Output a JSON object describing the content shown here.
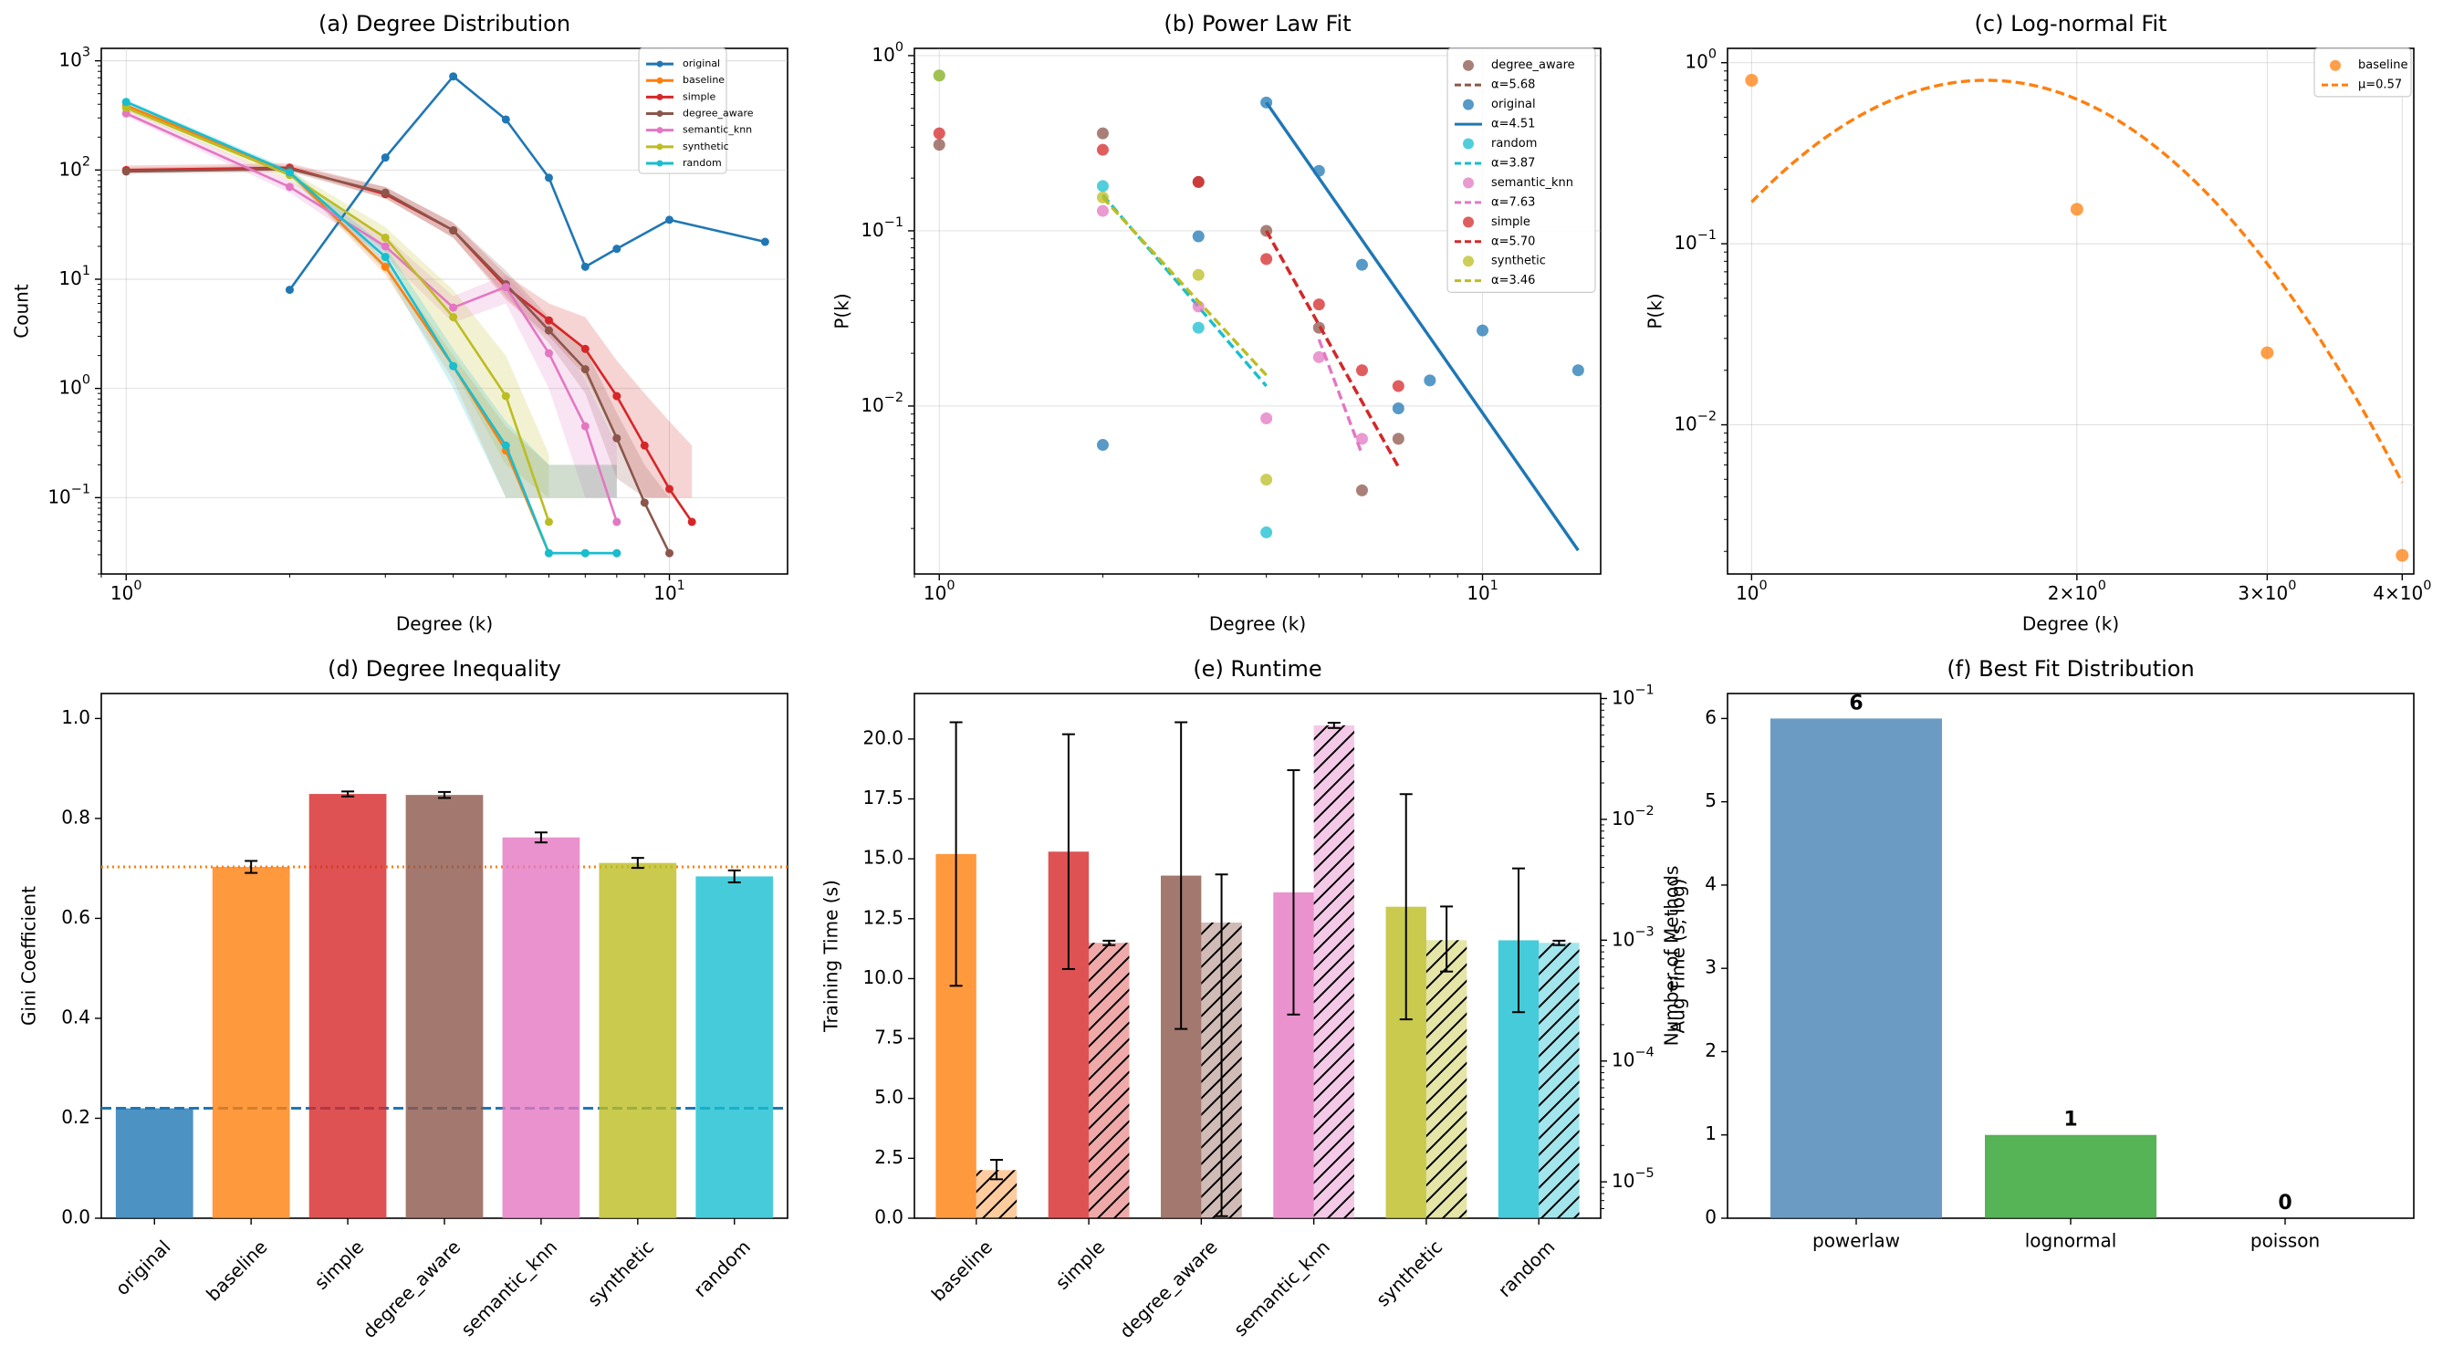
{
  "colors": {
    "original": "#1f77b4",
    "baseline": "#ff7f0e",
    "simple": "#d62728",
    "degree_aware": "#8c564b",
    "semantic_knn": "#e377c2",
    "synthetic": "#bcbd22",
    "random": "#17becf",
    "powerlaw_bar": "#4682b4",
    "lognormal_bar": "#2ca02c"
  },
  "chart_data": [
    {
      "id": "a",
      "type": "line",
      "title": "(a) Degree Distribution",
      "xlabel": "Degree (k)",
      "ylabel": "Count",
      "xscale": "log",
      "yscale": "log",
      "xlim": [
        0.9,
        16.5
      ],
      "ylim": [
        0.02,
        1300
      ],
      "xticks": [
        1,
        10
      ],
      "xtick_labels": [
        "10^0",
        "10^1"
      ],
      "yticks": [
        0.1,
        1,
        10,
        100,
        1000
      ],
      "ytick_labels": [
        "10^-1",
        "10^0",
        "10^1",
        "10^2",
        "10^3"
      ],
      "legend_position": "top-right",
      "series": [
        {
          "name": "original",
          "x": [
            2,
            3,
            4,
            5,
            6,
            7,
            8,
            10,
            15
          ],
          "y": [
            8,
            130,
            720,
            290,
            85,
            13,
            19,
            35,
            22
          ]
        },
        {
          "name": "baseline",
          "x": [
            1,
            2,
            3,
            4,
            5,
            6,
            7,
            8
          ],
          "y": [
            390,
            95,
            13,
            1.6,
            0.27,
            0.031,
            0.031,
            0.031
          ],
          "band_lo": [
            380,
            90,
            11,
            1.2,
            0.1,
            0.1,
            0.1,
            0.1
          ],
          "band_hi": [
            400,
            100,
            15,
            2.0,
            0.45,
            0.2,
            0.2,
            0.2
          ]
        },
        {
          "name": "simple",
          "x": [
            1,
            2,
            3,
            4,
            5,
            6,
            7,
            8,
            9,
            10,
            11
          ],
          "y": [
            100,
            105,
            60,
            28,
            8.5,
            4.2,
            2.3,
            0.85,
            0.3,
            0.12,
            0.06
          ],
          "band_lo": [
            95,
            100,
            55,
            24,
            6.5,
            3.0,
            1.3,
            0.35,
            0.1,
            0.1,
            0.1
          ],
          "band_hi": [
            110,
            115,
            70,
            33,
            11,
            6,
            4.5,
            1.8,
            0.9,
            0.5,
            0.3
          ]
        },
        {
          "name": "degree_aware",
          "x": [
            1,
            2,
            3,
            4,
            5,
            6,
            7,
            8,
            9,
            10
          ],
          "y": [
            97,
            102,
            62,
            28,
            9,
            3.4,
            1.5,
            0.35,
            0.09,
            0.031
          ],
          "band_lo": [
            92,
            96,
            55,
            24,
            7,
            2.6,
            0.9,
            0.15,
            0.1,
            0.1
          ],
          "band_hi": [
            105,
            110,
            70,
            33,
            12,
            4.5,
            2.3,
            0.6,
            0.2,
            0.1
          ]
        },
        {
          "name": "semantic_knn",
          "x": [
            1,
            2,
            3,
            4,
            5,
            6,
            7,
            8
          ],
          "y": [
            330,
            70,
            20,
            5.5,
            8.5,
            2.1,
            0.45,
            0.06
          ],
          "band_lo": [
            310,
            62,
            16,
            4.0,
            6.0,
            1.0,
            0.1,
            0.1
          ],
          "band_hi": [
            360,
            80,
            25,
            7,
            11,
            4,
            1.2,
            0.3
          ]
        },
        {
          "name": "synthetic",
          "x": [
            1,
            2,
            3,
            4,
            5,
            6
          ],
          "y": [
            370,
            90,
            24,
            4.5,
            0.85,
            0.06
          ],
          "band_lo": [
            350,
            80,
            18,
            1.5,
            0.2,
            0.1
          ],
          "band_hi": [
            390,
            100,
            30,
            8,
            2.0,
            0.25
          ]
        },
        {
          "name": "random",
          "x": [
            1,
            2,
            3,
            4,
            5,
            6,
            7,
            8
          ],
          "y": [
            420,
            95,
            16,
            1.6,
            0.3,
            0.031,
            0.031,
            0.031
          ],
          "band_lo": [
            400,
            88,
            12,
            1.0,
            0.1,
            0.1,
            0.1,
            0.1
          ],
          "band_hi": [
            440,
            102,
            20,
            2.3,
            0.5,
            0.2,
            0.2,
            0.2
          ]
        }
      ]
    },
    {
      "id": "b",
      "type": "scatter",
      "title": "(b) Power Law Fit",
      "xlabel": "Degree (k)",
      "ylabel": "P(k)",
      "xscale": "log",
      "yscale": "log",
      "xlim": [
        0.9,
        16.5
      ],
      "ylim": [
        0.0011,
        1.1
      ],
      "xticks": [
        1,
        10
      ],
      "xtick_labels": [
        "10^0",
        "10^1"
      ],
      "yticks": [
        0.01,
        0.1,
        1
      ],
      "ytick_labels": [
        "10^-2",
        "10^-1",
        "10^0"
      ],
      "legend_position": "top-right",
      "legend": [
        "degree_aware",
        "α=5.68",
        "original",
        "α=4.51",
        "random",
        "α=3.87",
        "semantic_knn",
        "α=7.63",
        "simple",
        "α=5.70",
        "synthetic",
        "α=3.46"
      ],
      "series": [
        {
          "name": "degree_aware",
          "x": [
            1,
            2,
            3,
            4,
            5,
            6,
            7
          ],
          "y": [
            0.31,
            0.36,
            0.19,
            0.1,
            0.028,
            0.0033,
            0.0065
          ],
          "fit_label": "α=5.68",
          "fit_x": [
            4,
            7
          ],
          "fit_y": [
            0.1,
            0.0045
          ]
        },
        {
          "name": "original",
          "x": [
            2,
            3,
            4,
            5,
            6,
            7,
            8,
            10,
            15
          ],
          "y": [
            0.006,
            0.093,
            0.54,
            0.22,
            0.064,
            0.0097,
            0.014,
            0.027,
            0.016
          ],
          "fit_label": "α=4.51",
          "fit_x": [
            4,
            15
          ],
          "fit_y": [
            0.54,
            0.0015
          ]
        },
        {
          "name": "random",
          "x": [
            1,
            2,
            3,
            4
          ],
          "y": [
            0.77,
            0.18,
            0.028,
            0.0019
          ],
          "fit_label": "α=3.87",
          "fit_x": [
            2,
            4
          ],
          "fit_y": [
            0.16,
            0.013
          ]
        },
        {
          "name": "semantic_knn",
          "x": [
            2,
            3,
            4,
            5,
            6
          ],
          "y": [
            0.13,
            0.037,
            0.0085,
            0.019,
            0.0065
          ],
          "fit_label": "α=7.63",
          "fit_x": [
            5,
            6
          ],
          "fit_y": [
            0.024,
            0.0053
          ]
        },
        {
          "name": "simple",
          "x": [
            1,
            2,
            3,
            4,
            5,
            6,
            7
          ],
          "y": [
            0.36,
            0.29,
            0.19,
            0.069,
            0.038,
            0.016,
            0.013
          ],
          "fit_label": "α=5.70",
          "fit_x": [
            4,
            7
          ],
          "fit_y": [
            0.1,
            0.0045
          ]
        },
        {
          "name": "synthetic",
          "x": [
            1,
            2,
            3,
            4
          ],
          "y": [
            0.77,
            0.155,
            0.056,
            0.0038
          ],
          "fit_label": "α=3.46",
          "fit_x": [
            2,
            4
          ],
          "fit_y": [
            0.155,
            0.015
          ]
        }
      ]
    },
    {
      "id": "c",
      "type": "scatter",
      "title": "(c) Log-normal Fit",
      "xlabel": "Degree (k)",
      "ylabel": "P(k)",
      "xscale": "log",
      "yscale": "log",
      "xlim": [
        0.95,
        4.1
      ],
      "ylim": [
        0.0015,
        1.2
      ],
      "xticks": [
        1,
        2,
        3,
        4
      ],
      "xtick_labels": [
        "10^0",
        "2×10^0",
        "3×10^0",
        "4×10^0"
      ],
      "yticks": [
        0.01,
        0.1,
        1
      ],
      "ytick_labels": [
        "10^-2",
        "10^-1",
        "10^0"
      ],
      "legend_position": "top-right",
      "legend": [
        "baseline",
        "μ=0.57"
      ],
      "series": [
        {
          "name": "baseline",
          "x": [
            1,
            2,
            3,
            4
          ],
          "y": [
            0.8,
            0.155,
            0.025,
            0.0019
          ]
        },
        {
          "name": "μ=0.57",
          "type": "line",
          "mu": 0.57,
          "peak_x": 1.65,
          "peak_y": 0.8,
          "x_range": [
            1,
            4
          ],
          "y_at_1": 0.17,
          "y_at_4": 0.0048
        }
      ]
    },
    {
      "id": "d",
      "type": "bar",
      "title": "(d) Degree Inequality",
      "xlabel": "",
      "ylabel": "Gini Coefficient",
      "ylim": [
        0,
        1.05
      ],
      "yticks": [
        0.0,
        0.2,
        0.4,
        0.6,
        0.8,
        1.0
      ],
      "ytick_labels": [
        "0.0",
        "0.2",
        "0.4",
        "0.6",
        "0.8",
        "1.0"
      ],
      "categories": [
        "original",
        "baseline",
        "simple",
        "degree_aware",
        "semantic_knn",
        "synthetic",
        "random"
      ],
      "values": [
        0.22,
        0.703,
        0.849,
        0.847,
        0.762,
        0.711,
        0.684
      ],
      "errors": [
        0,
        0.012,
        0.005,
        0.006,
        0.01,
        0.01,
        0.012
      ],
      "hline_original": 0.22,
      "hline_baseline": 0.703
    },
    {
      "id": "e",
      "type": "bar",
      "title": "(e) Runtime",
      "xlabel": "",
      "ylabel": "Training Time (s)",
      "ylabel_right": "Aug Time (s, log)",
      "ylim": [
        0,
        21.9
      ],
      "ylim_right": [
        5e-06,
        0.11
      ],
      "yticks": [
        0,
        2.5,
        5,
        7.5,
        10,
        12.5,
        15,
        17.5,
        20
      ],
      "ytick_labels": [
        "0.0",
        "2.5",
        "5.0",
        "7.5",
        "10.0",
        "12.5",
        "15.0",
        "17.5",
        "20.0"
      ],
      "yticks_right": [
        1e-05,
        0.0001,
        0.001,
        0.01,
        0.1
      ],
      "ytick_labels_right": [
        "10^-5",
        "10^-4",
        "10^-3",
        "10^-2",
        "10^-1"
      ],
      "categories": [
        "baseline",
        "simple",
        "degree_aware",
        "semantic_knn",
        "synthetic",
        "random"
      ],
      "series": [
        {
          "name": "Training Time",
          "values": [
            15.2,
            15.3,
            14.3,
            13.6,
            13.0,
            11.6
          ],
          "errors": [
            5.5,
            4.9,
            6.4,
            5.1,
            4.7,
            3.0
          ]
        },
        {
          "name": "Aug Time",
          "values": [
            1.25e-05,
            0.00095,
            0.0014,
            0.06,
            0.001,
            0.00095
          ],
          "err_lo": [
            1.05e-05,
            0.00091,
            5.2e-06,
            0.057,
            0.00055,
            0.00091
          ],
          "err_hi": [
            1.52e-05,
            0.00099,
            0.0035,
            0.063,
            0.0019,
            0.00099
          ]
        }
      ]
    },
    {
      "id": "f",
      "type": "bar",
      "title": "(f) Best Fit Distribution",
      "xlabel": "",
      "ylabel": "Number of Methods",
      "ylim": [
        0,
        6.3
      ],
      "yticks": [
        0,
        1,
        2,
        3,
        4,
        5,
        6
      ],
      "ytick_labels": [
        "0",
        "1",
        "2",
        "3",
        "4",
        "5",
        "6"
      ],
      "categories": [
        "powerlaw",
        "lognormal",
        "poisson"
      ],
      "values": [
        6,
        1,
        0
      ],
      "value_labels": [
        "6",
        "1",
        "0"
      ]
    }
  ]
}
